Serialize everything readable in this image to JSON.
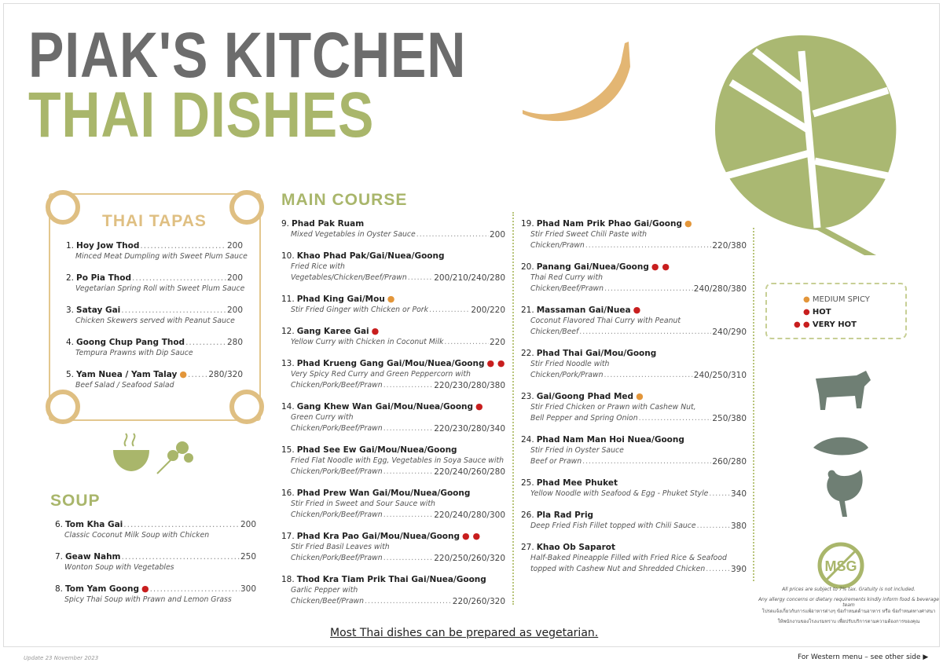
{
  "header": {
    "line1": "PIAK'S KITCHEN",
    "line2": "THAI DISHES"
  },
  "colors": {
    "gray": "#6c6c6c",
    "green": "#a9b66b",
    "gold": "#dfbf82",
    "medium": "#e3963a",
    "hot": "#c81e1e"
  },
  "tapas": {
    "title": "THAI TAPAS",
    "items": [
      {
        "num": "1.",
        "name": "Hoy Jow Thod",
        "spice": "",
        "price": "200",
        "desc": [
          "Minced Meat Dumpling with Sweet Plum Sauce"
        ]
      },
      {
        "num": "2.",
        "name": "Po Pia Thod",
        "spice": "",
        "price": "200",
        "desc": [
          "Vegetarian Spring Roll with Sweet Plum Sauce"
        ]
      },
      {
        "num": "3.",
        "name": "Satay Gai",
        "spice": "",
        "price": "200",
        "desc": [
          "Chicken Skewers served with Peanut Sauce"
        ]
      },
      {
        "num": "4.",
        "name": "Goong Chup Pang Thod",
        "spice": "",
        "price": "280",
        "desc": [
          "Tempura Prawns with Dip Sauce"
        ]
      },
      {
        "num": "5.",
        "name": "Yam Nuea / Yam Talay",
        "spice": "medium",
        "price": "280/320",
        "desc": [
          "Beef Salad / Seafood Salad"
        ]
      }
    ]
  },
  "soup": {
    "title": "SOUP",
    "items": [
      {
        "num": "6.",
        "name": "Tom Kha Gai",
        "spice": "",
        "price": "200",
        "desc": [
          "Classic Coconut Milk Soup with Chicken"
        ]
      },
      {
        "num": "7.",
        "name": "Geaw Nahm",
        "spice": "",
        "price": "250",
        "desc": [
          "Wonton Soup with Vegetables"
        ]
      },
      {
        "num": "8.",
        "name": "Tom Yam Goong",
        "spice": "hot",
        "price": "300",
        "desc": [
          "Spicy Thai Soup with Prawn and Lemon Grass"
        ]
      }
    ]
  },
  "main": {
    "title": "MAIN COURSE",
    "col1": [
      {
        "num": "9.",
        "name": "Phad Pak Ruam",
        "spice": "",
        "price": "200",
        "desc": [
          "Mixed Vegetables in Oyster Sauce"
        ]
      },
      {
        "num": "10.",
        "name": "Khao Phad Pak/Gai/Nuea/Goong",
        "spice": "",
        "price": "200/210/240/280",
        "desc": [
          "Fried Rice with",
          "Vegetables/Chicken/Beef/Prawn"
        ]
      },
      {
        "num": "11.",
        "name": "Phad King Gai/Mou",
        "spice": "medium",
        "price": "200/220",
        "desc": [
          "Stir Fried Ginger with Chicken or Pork"
        ]
      },
      {
        "num": "12.",
        "name": "Gang Karee Gai",
        "spice": "hot",
        "price": "220",
        "desc": [
          "Yellow Curry with Chicken in Coconut Milk"
        ]
      },
      {
        "num": "13.",
        "name": "Phad Krueng Gang Gai/Mou/Nuea/Goong",
        "spice": "very-hot",
        "price": "220/230/280/380",
        "desc": [
          "Very Spicy Red Curry and Green Peppercorn with",
          "Chicken/Pork/Beef/Prawn"
        ]
      },
      {
        "num": "14.",
        "name": "Gang Khew Wan Gai/Mou/Nuea/Goong",
        "spice": "hot",
        "price": "220/230/280/340",
        "desc": [
          "Green Curry with",
          "Chicken/Pork/Beef/Prawn"
        ]
      },
      {
        "num": "15.",
        "name": "Phad See Ew Gai/Mou/Nuea/Goong",
        "spice": "",
        "price": "220/240/260/280",
        "desc": [
          "Fried Flat Noodle with Egg, Vegetables in Soya Sauce with",
          "Chicken/Pork/Beef/Prawn"
        ]
      },
      {
        "num": "16.",
        "name": "Phad Prew Wan Gai/Mou/Nuea/Goong",
        "spice": "",
        "price": "220/240/280/300",
        "desc": [
          "Stir Fried in Sweet and Sour Sauce with",
          "Chicken/Pork/Beef/Prawn"
        ]
      },
      {
        "num": "17.",
        "name": "Phad Kra Pao Gai/Mou/Nuea/Goong",
        "spice": "very-hot",
        "price": "220/250/260/320",
        "desc": [
          "Stir Fried Basil Leaves with",
          "Chicken/Pork/Beef/Prawn"
        ]
      },
      {
        "num": "18.",
        "name": "Thod Kra Tiam Prik Thai Gai/Nuea/Goong",
        "spice": "",
        "price": "220/260/320",
        "desc": [
          "Garlic Pepper with",
          "Chicken/Beef/Prawn"
        ]
      }
    ],
    "col2": [
      {
        "num": "19.",
        "name": "Phad Nam Prik Phao Gai/Goong",
        "spice": "medium",
        "price": "220/380",
        "desc": [
          "Stir Fried Sweet Chili Paste with",
          "Chicken/Prawn"
        ]
      },
      {
        "num": "20.",
        "name": "Panang Gai/Nuea/Goong",
        "spice": "very-hot",
        "price": "240/280/380",
        "desc": [
          "Thai Red Curry with",
          "Chicken/Beef/Prawn"
        ]
      },
      {
        "num": "21.",
        "name": "Massaman Gai/Nuea",
        "spice": "hot",
        "price": "240/290",
        "desc": [
          "Coconut Flavored Thai Curry with Peanut",
          "Chicken/Beef"
        ]
      },
      {
        "num": "22.",
        "name": "Phad Thai Gai/Mou/Goong",
        "spice": "",
        "price": "240/250/310",
        "desc": [
          "Stir Fried Noodle with",
          "Chicken/Pork/Prawn"
        ]
      },
      {
        "num": "23.",
        "name": "Gai/Goong Phad Med",
        "spice": "medium",
        "price": "250/380",
        "desc": [
          "Stir Fried Chicken or Prawn with Cashew Nut,",
          "Bell Pepper and Spring Onion"
        ]
      },
      {
        "num": "24.",
        "name": "Phad Nam Man Hoi Nuea/Goong",
        "spice": "",
        "price": "260/280",
        "desc": [
          "Stir Fried in Oyster Sauce",
          "Beef or Prawn"
        ]
      },
      {
        "num": "25.",
        "name": "Phad Mee Phuket",
        "spice": "",
        "price": "340",
        "desc": [
          "Yellow Noodle with Seafood & Egg - Phuket Style"
        ]
      },
      {
        "num": "26.",
        "name": "Pla Rad Prig",
        "spice": "",
        "price": "380",
        "desc": [
          "Deep Fried Fish Fillet topped with Chili Sauce"
        ]
      },
      {
        "num": "27.",
        "name": "Khao Ob Saparot",
        "spice": "",
        "price": "390",
        "desc": [
          "Half-Baked Pineapple Filled with Fried Rice & Seafood",
          "topped with Cashew Nut and Shredded Chicken"
        ]
      }
    ]
  },
  "legend": {
    "medium": "MEDIUM SPICY",
    "hot": "HOT",
    "very_hot": "VERY HOT"
  },
  "msg_logo": {
    "text": "MSG",
    "ring": "NO ADDITION OF MSG"
  },
  "notes": {
    "tax": "All prices are subject to 7% tax. Gratuity is not included.",
    "allergy": "Any allergy concerns or dietary requirements kindly inform food & beverage team",
    "thai1": "โปรดแจ้งเกี่ยวกับการแพ้อาหารต่างๆ ข้อกำหนดด้านอาหาร หรือ ข้อกำหนดทางศาสนา",
    "thai2": "ให้พนักงานของโรงแรมทราบ เพื่อปรับบริการตามความต้องการของคุณ"
  },
  "vegetarian_note": "Most Thai dishes can be prepared as vegetarian.",
  "footer": {
    "update": "Update 23 November 2023",
    "western": "For Western menu – see other side ▶"
  }
}
